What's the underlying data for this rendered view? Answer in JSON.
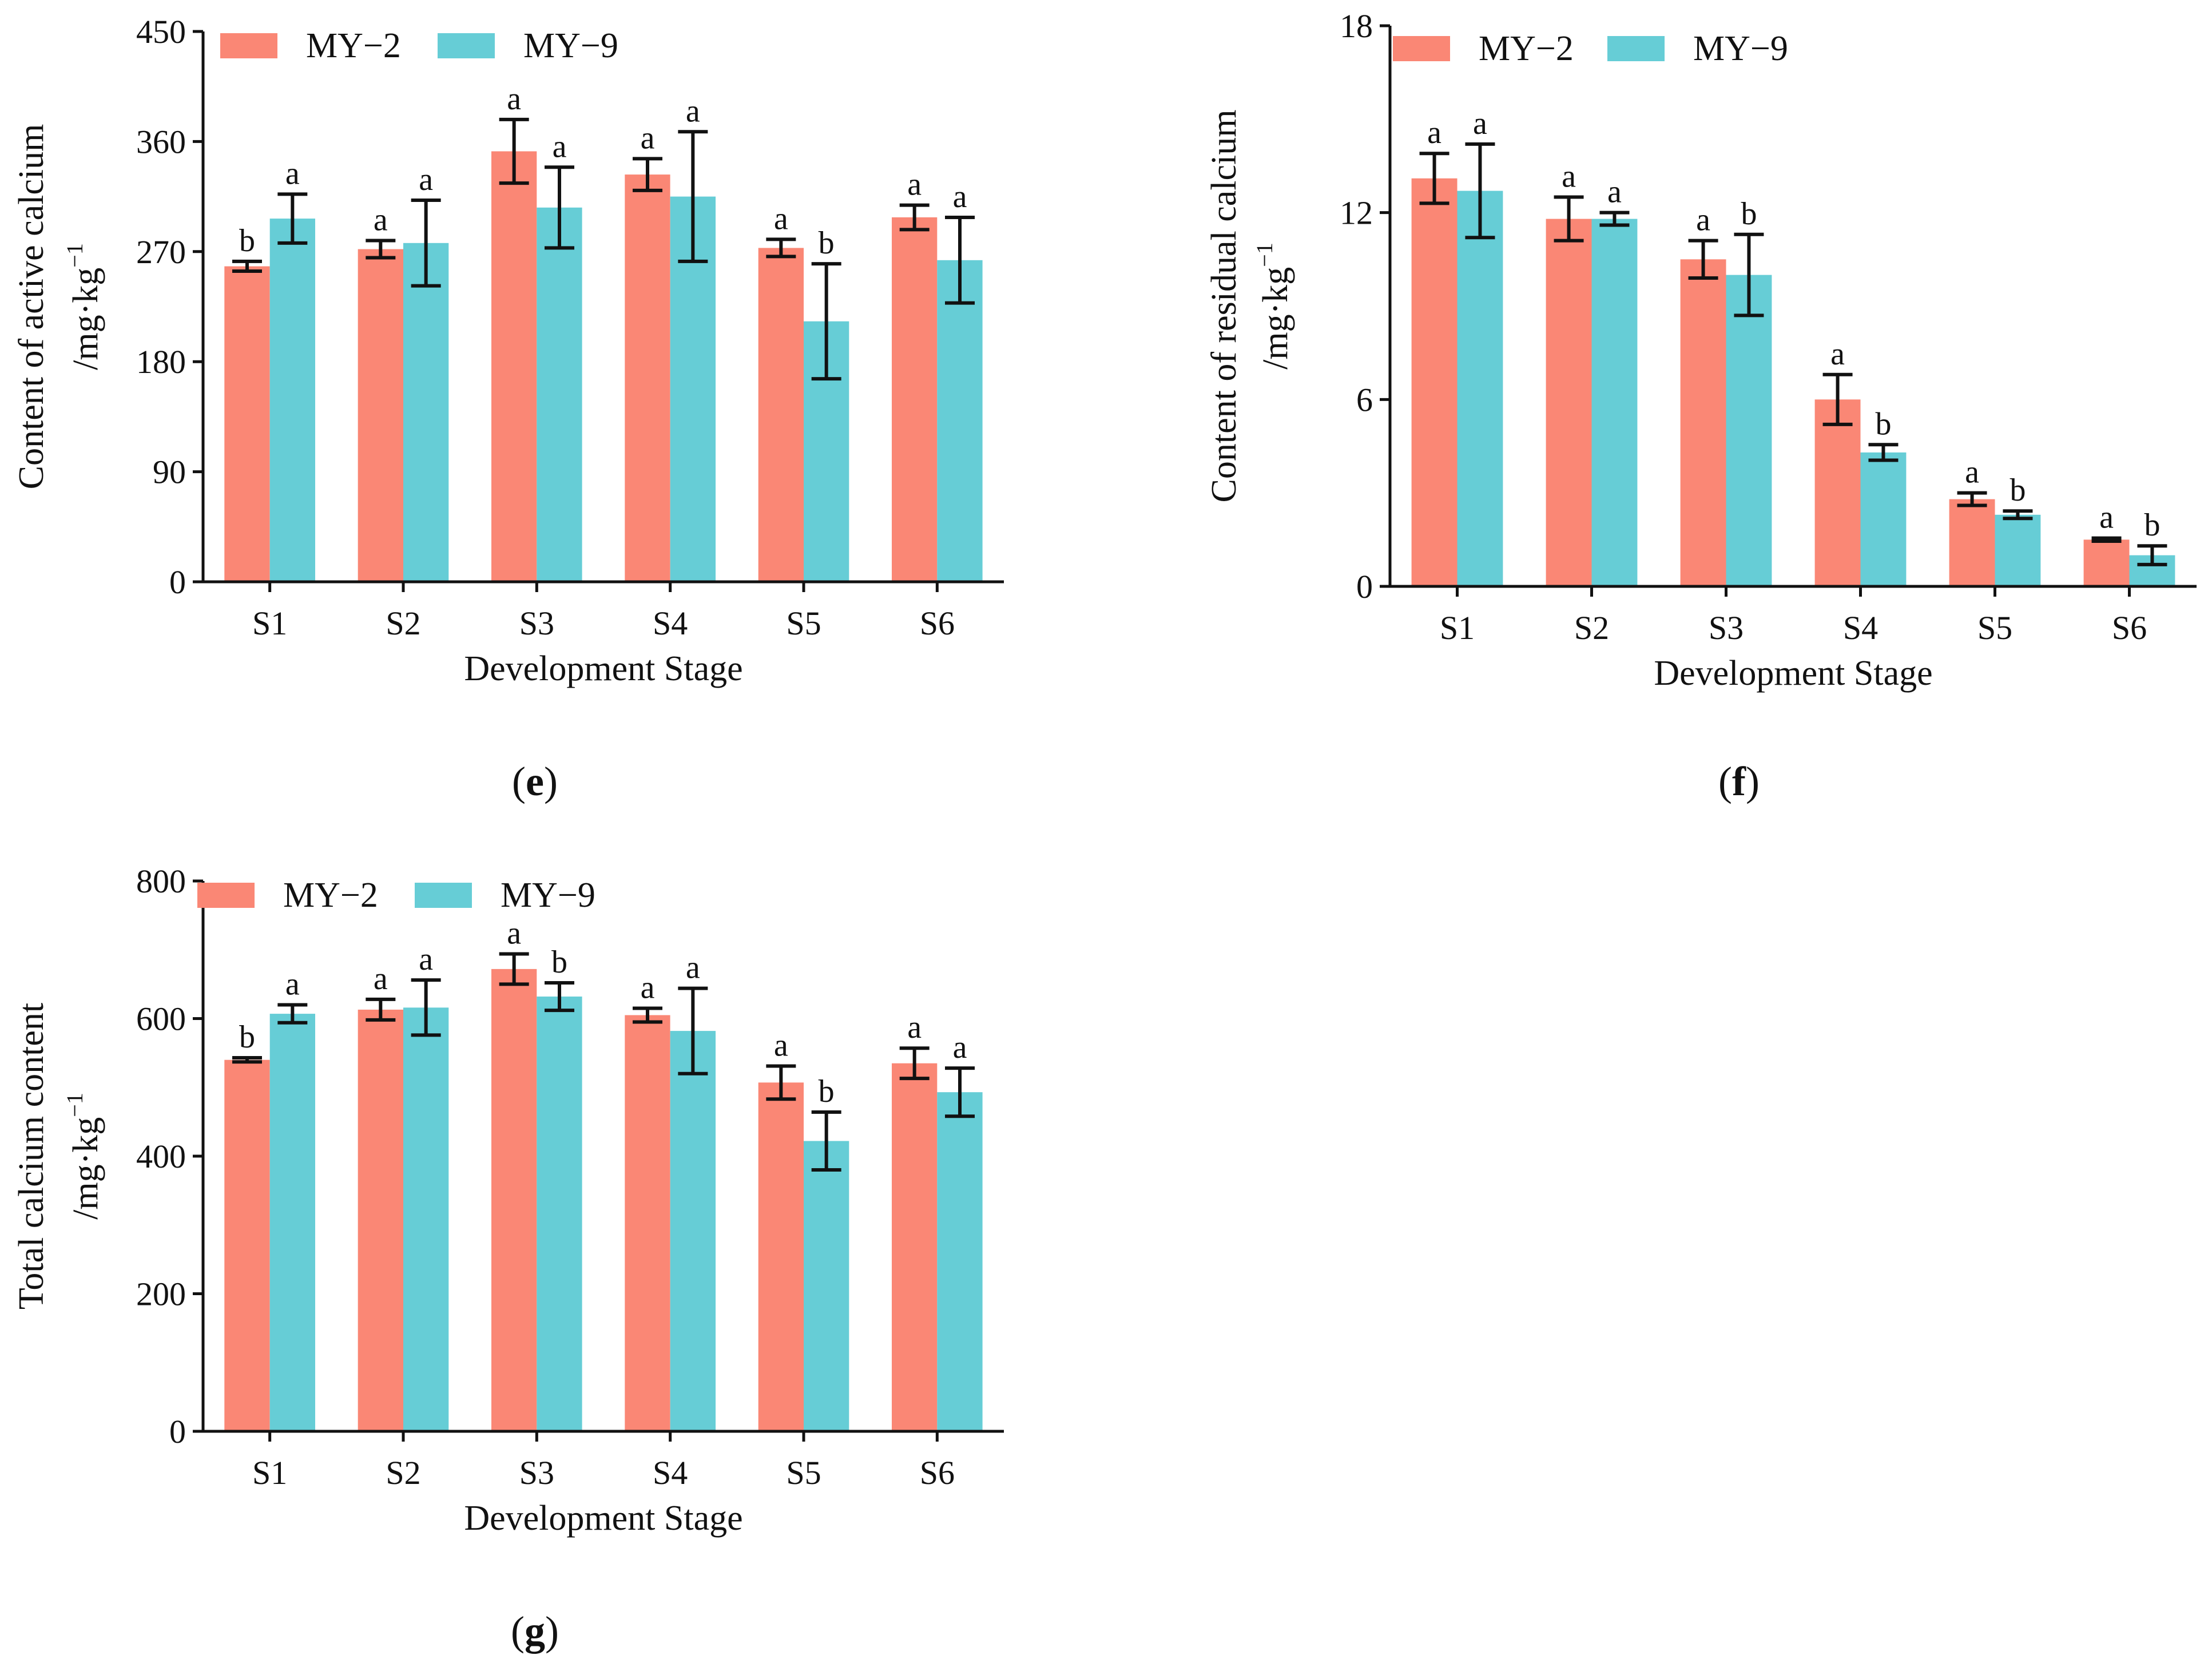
{
  "colors": {
    "my2": "#fa8775",
    "my9": "#66cdd6",
    "axis": "#111111"
  },
  "chart_data": [
    {
      "id": "e",
      "panel_label": "e",
      "type": "bar",
      "title": "",
      "xlabel": "Development Stage",
      "ylabel": "Content of active calcium",
      "ylabel_unit": "/mg·kg",
      "ylabel_exponent": "−1",
      "ylim": [
        0,
        450
      ],
      "yticks": [
        "0",
        "90",
        "180",
        "270",
        "360",
        "450"
      ],
      "ytick_values": [
        0,
        90,
        180,
        270,
        360,
        450
      ],
      "categories": [
        "S1",
        "S2",
        "S3",
        "S4",
        "S5",
        "S6"
      ],
      "legend": [
        "MY−2",
        "MY−9"
      ],
      "series": [
        {
          "name": "MY−2",
          "values": [
            258,
            272,
            352,
            333,
            273,
            298
          ],
          "errors": [
            4,
            7,
            26,
            13,
            7,
            10
          ],
          "letters": [
            "b",
            "a",
            "a",
            "a",
            "a",
            "a"
          ]
        },
        {
          "name": "MY−9",
          "values": [
            297,
            277,
            306,
            315,
            213,
            263
          ],
          "errors": [
            20,
            35,
            33,
            53,
            47,
            35
          ],
          "letters": [
            "a",
            "a",
            "a",
            "a",
            "b",
            "a"
          ]
        }
      ]
    },
    {
      "id": "f",
      "panel_label": "f",
      "type": "bar",
      "title": "",
      "xlabel": "Development Stage",
      "ylabel": "Content of residual calcium",
      "ylabel_unit": "/mg·kg",
      "ylabel_exponent": "−1",
      "ylim": [
        0,
        18
      ],
      "yticks": [
        "0",
        "6",
        "12",
        "18"
      ],
      "ytick_values": [
        0,
        6,
        12,
        18
      ],
      "categories": [
        "S1",
        "S2",
        "S3",
        "S4",
        "S5",
        "S6"
      ],
      "legend": [
        "MY−2",
        "MY−9"
      ],
      "series": [
        {
          "name": "MY−2",
          "values": [
            13.1,
            11.8,
            10.5,
            6.0,
            2.8,
            1.5
          ],
          "errors": [
            0.8,
            0.7,
            0.6,
            0.8,
            0.2,
            0.05
          ],
          "letters": [
            "a",
            "a",
            "a",
            "a",
            "a",
            "a"
          ]
        },
        {
          "name": "MY−9",
          "values": [
            12.7,
            11.8,
            10.0,
            4.3,
            2.3,
            1.0
          ],
          "errors": [
            1.5,
            0.2,
            1.3,
            0.25,
            0.12,
            0.3
          ],
          "letters": [
            "a",
            "a",
            "b",
            "b",
            "b",
            "b"
          ]
        }
      ]
    },
    {
      "id": "g",
      "panel_label": "g",
      "type": "bar",
      "title": "",
      "xlabel": "Development Stage",
      "ylabel": "Total calcium content",
      "ylabel_unit": "/mg·kg",
      "ylabel_exponent": "−1",
      "ylim": [
        0,
        800
      ],
      "yticks": [
        "0",
        "200",
        "400",
        "600",
        "800"
      ],
      "ytick_values": [
        0,
        200,
        400,
        600,
        800
      ],
      "categories": [
        "S1",
        "S2",
        "S3",
        "S4",
        "S5",
        "S6"
      ],
      "legend": [
        "MY−2",
        "MY−9"
      ],
      "series": [
        {
          "name": "MY−2",
          "values": [
            540,
            613,
            672,
            605,
            507,
            535
          ],
          "errors": [
            3,
            15,
            22,
            10,
            24,
            22
          ],
          "letters": [
            "b",
            "a",
            "a",
            "a",
            "a",
            "a"
          ]
        },
        {
          "name": "MY−9",
          "values": [
            607,
            616,
            632,
            582,
            422,
            493
          ],
          "errors": [
            13,
            40,
            20,
            62,
            42,
            35
          ],
          "letters": [
            "a",
            "a",
            "b",
            "a",
            "b",
            "a"
          ]
        }
      ]
    }
  ]
}
